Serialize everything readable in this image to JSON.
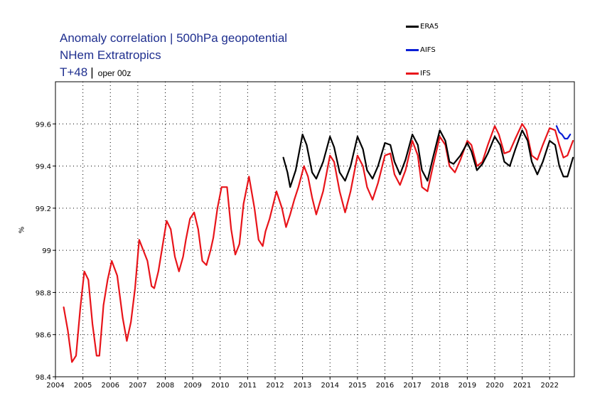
{
  "chart_data": {
    "type": "line",
    "title": "Anomaly correlation | 500hPa geopotential",
    "subtitle": "NHem Extratropics",
    "lead_time": "T+48",
    "stream": "oper 00z",
    "xlabel": "",
    "ylabel": "%",
    "xlim": [
      2004.0,
      2022.9
    ],
    "ylim": [
      98.4,
      99.8
    ],
    "x_ticks": [
      2004,
      2005,
      2006,
      2007,
      2008,
      2009,
      2010,
      2011,
      2012,
      2013,
      2014,
      2015,
      2016,
      2017,
      2018,
      2019,
      2020,
      2021,
      2022
    ],
    "y_ticks": [
      98.4,
      98.6,
      98.8,
      99,
      99.2,
      99.4,
      99.6
    ],
    "y_tick_labels": [
      "98.4",
      "98.6",
      "98.8",
      "99",
      "99.2",
      "99.4",
      "99.6"
    ],
    "grid": "dotted",
    "legend_position": "top-right",
    "series": [
      {
        "name": "ERA5",
        "color": "#000000",
        "x": [
          2012.3,
          2012.45,
          2012.55,
          2012.75,
          2013.0,
          2013.15,
          2013.35,
          2013.5,
          2013.75,
          2014.0,
          2014.15,
          2014.35,
          2014.55,
          2014.75,
          2015.0,
          2015.2,
          2015.35,
          2015.55,
          2015.75,
          2016.0,
          2016.2,
          2016.35,
          2016.55,
          2016.75,
          2017.0,
          2017.2,
          2017.35,
          2017.55,
          2017.75,
          2018.0,
          2018.2,
          2018.35,
          2018.5,
          2018.75,
          2019.0,
          2019.15,
          2019.35,
          2019.55,
          2019.75,
          2020.0,
          2020.2,
          2020.35,
          2020.55,
          2020.75,
          2021.0,
          2021.2,
          2021.35,
          2021.55,
          2021.75,
          2022.0,
          2022.2,
          2022.35,
          2022.5,
          2022.65,
          2022.85
        ],
        "y": [
          99.44,
          99.37,
          99.3,
          99.38,
          99.55,
          99.5,
          99.37,
          99.34,
          99.42,
          99.54,
          99.49,
          99.37,
          99.33,
          99.4,
          99.54,
          99.48,
          99.38,
          99.34,
          99.4,
          99.51,
          99.5,
          99.42,
          99.36,
          99.43,
          99.55,
          99.5,
          99.38,
          99.33,
          99.44,
          99.57,
          99.52,
          99.42,
          99.41,
          99.45,
          99.51,
          99.47,
          99.38,
          99.41,
          99.46,
          99.54,
          99.5,
          99.42,
          99.4,
          99.48,
          99.57,
          99.52,
          99.42,
          99.36,
          99.42,
          99.52,
          99.5,
          99.4,
          99.35,
          99.35,
          99.44
        ]
      },
      {
        "name": "AIFS",
        "color": "#0a1fd6",
        "x": [
          2022.25,
          2022.35,
          2022.45,
          2022.55,
          2022.65,
          2022.75
        ],
        "y": [
          99.59,
          99.56,
          99.55,
          99.53,
          99.53,
          99.55
        ]
      },
      {
        "name": "IFS",
        "color": "#e8141a",
        "x": [
          2004.3,
          2004.45,
          2004.6,
          2004.75,
          2004.9,
          2005.05,
          2005.2,
          2005.35,
          2005.5,
          2005.6,
          2005.75,
          2005.9,
          2006.05,
          2006.25,
          2006.45,
          2006.6,
          2006.75,
          2006.9,
          2007.05,
          2007.2,
          2007.35,
          2007.5,
          2007.6,
          2007.75,
          2007.9,
          2008.05,
          2008.2,
          2008.35,
          2008.5,
          2008.65,
          2008.75,
          2008.9,
          2009.05,
          2009.2,
          2009.35,
          2009.5,
          2009.65,
          2009.75,
          2009.9,
          2010.05,
          2010.25,
          2010.4,
          2010.55,
          2010.7,
          2010.85,
          2011.05,
          2011.25,
          2011.4,
          2011.55,
          2011.65,
          2011.8,
          2012.05,
          2012.25,
          2012.4,
          2012.55,
          2012.7,
          2012.85,
          2013.05,
          2013.2,
          2013.35,
          2013.5,
          2013.75,
          2014.0,
          2014.15,
          2014.35,
          2014.55,
          2014.75,
          2015.0,
          2015.2,
          2015.35,
          2015.55,
          2015.75,
          2016.0,
          2016.2,
          2016.35,
          2016.55,
          2016.75,
          2017.0,
          2017.2,
          2017.35,
          2017.55,
          2017.75,
          2018.0,
          2018.2,
          2018.35,
          2018.55,
          2018.75,
          2019.0,
          2019.15,
          2019.35,
          2019.55,
          2019.75,
          2020.0,
          2020.15,
          2020.35,
          2020.55,
          2020.75,
          2021.0,
          2021.15,
          2021.35,
          2021.55,
          2021.75,
          2022.0,
          2022.2,
          2022.35,
          2022.5,
          2022.65,
          2022.85
        ],
        "y": [
          98.73,
          98.62,
          98.47,
          98.5,
          98.72,
          98.9,
          98.86,
          98.65,
          98.5,
          98.5,
          98.74,
          98.86,
          98.95,
          98.88,
          98.68,
          98.57,
          98.66,
          98.82,
          99.05,
          99.0,
          98.95,
          98.83,
          98.82,
          98.9,
          99.02,
          99.14,
          99.1,
          98.97,
          98.9,
          98.97,
          99.05,
          99.15,
          99.18,
          99.1,
          98.95,
          98.93,
          99.0,
          99.06,
          99.2,
          99.3,
          99.3,
          99.1,
          98.98,
          99.03,
          99.22,
          99.35,
          99.2,
          99.05,
          99.02,
          99.09,
          99.15,
          99.28,
          99.2,
          99.11,
          99.17,
          99.24,
          99.3,
          99.4,
          99.35,
          99.25,
          99.17,
          99.28,
          99.45,
          99.42,
          99.28,
          99.18,
          99.28,
          99.45,
          99.4,
          99.3,
          99.24,
          99.32,
          99.45,
          99.46,
          99.36,
          99.31,
          99.38,
          99.52,
          99.45,
          99.3,
          99.28,
          99.4,
          99.54,
          99.5,
          99.4,
          99.37,
          99.43,
          99.52,
          99.5,
          99.4,
          99.42,
          99.5,
          99.59,
          99.55,
          99.46,
          99.47,
          99.53,
          99.6,
          99.57,
          99.45,
          99.43,
          99.5,
          99.58,
          99.57,
          99.5,
          99.44,
          99.45,
          99.52
        ]
      }
    ]
  }
}
